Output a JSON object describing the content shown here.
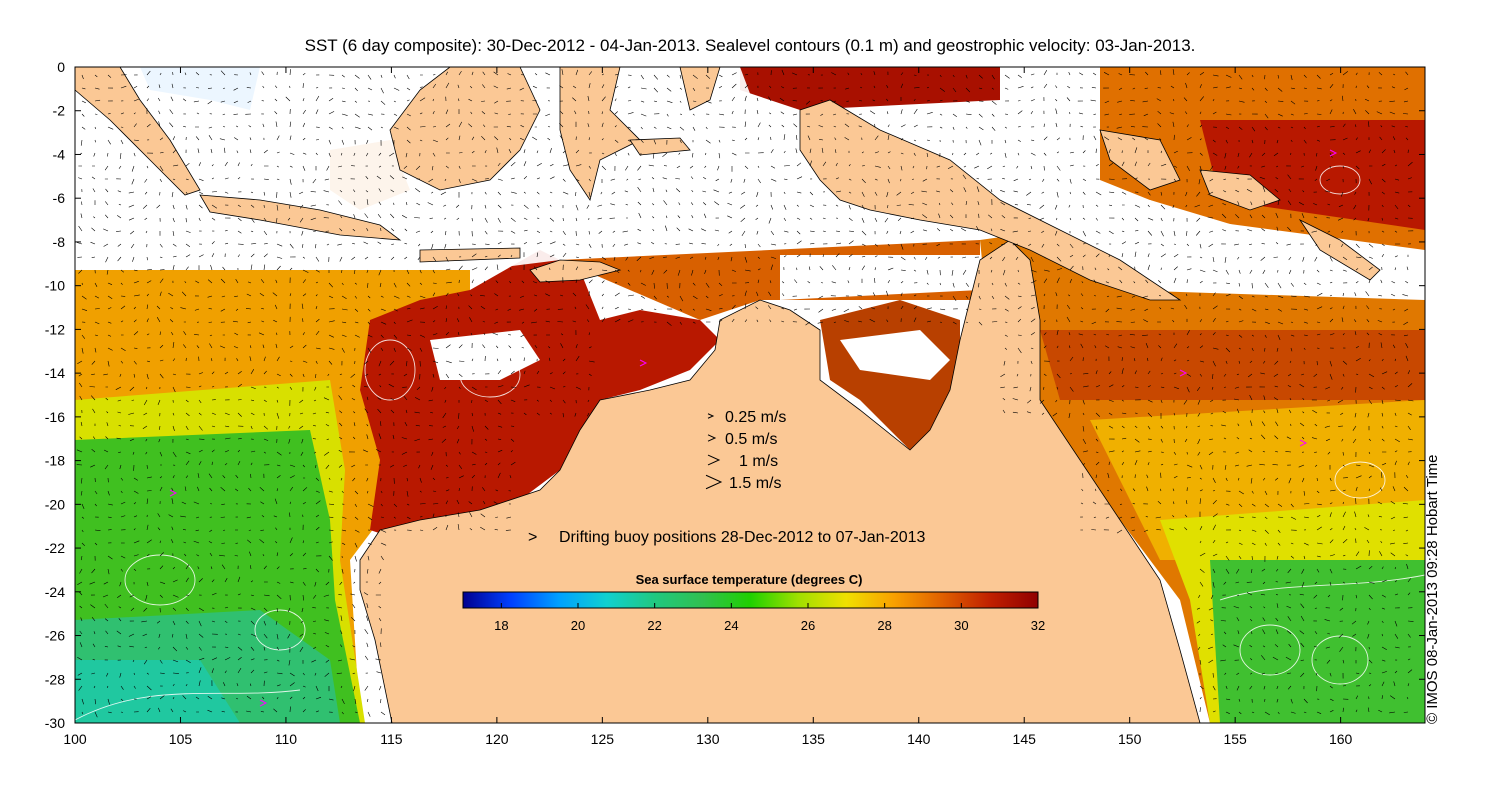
{
  "title": "SST (6 day composite): 30-Dec-2012 - 04-Jan-2013. Sealevel contours (0.1 m) and geostrophic velocity: 03-Jan-2013.",
  "credit": "© IMOS 08-Jan-2013 09:28 Hobart Time",
  "axes": {
    "x_ticks": [
      "100",
      "105",
      "110",
      "115",
      "120",
      "125",
      "130",
      "135",
      "140",
      "145",
      "150",
      "155",
      "160"
    ],
    "y_ticks": [
      "0",
      "-2",
      "-4",
      "-6",
      "-8",
      "-10",
      "-12",
      "-14",
      "-16",
      "-18",
      "-20",
      "-22",
      "-24",
      "-26",
      "-28",
      "-30"
    ],
    "lon_range": [
      100,
      164
    ],
    "lat_range": [
      -30,
      0
    ]
  },
  "velocity_legend": [
    {
      "label": "0.25 m/s",
      "speed": 0.25
    },
    {
      "label": "0.5 m/s",
      "speed": 0.5
    },
    {
      "label": "1 m/s",
      "speed": 1
    },
    {
      "label": "1.5 m/s",
      "speed": 1.5
    }
  ],
  "buoy_legend": {
    "marker": ">",
    "label": "Drifting buoy positions 28-Dec-2012 to 07-Jan-2013",
    "color": "#ff00ff"
  },
  "colorbar": {
    "title": "Sea surface temperature (degrees C)",
    "ticks": [
      "18",
      "20",
      "22",
      "24",
      "26",
      "28",
      "30",
      "32"
    ],
    "range": [
      17,
      32
    ],
    "stops": [
      "#00008f",
      "#0040ff",
      "#00a0ff",
      "#10d0d0",
      "#20c880",
      "#30c050",
      "#20d000",
      "#a0e000",
      "#f0e000",
      "#f8a000",
      "#e06000",
      "#c02000",
      "#900000"
    ]
  },
  "colors": {
    "land": "#fbc895",
    "no_data": "#ffffff"
  }
}
